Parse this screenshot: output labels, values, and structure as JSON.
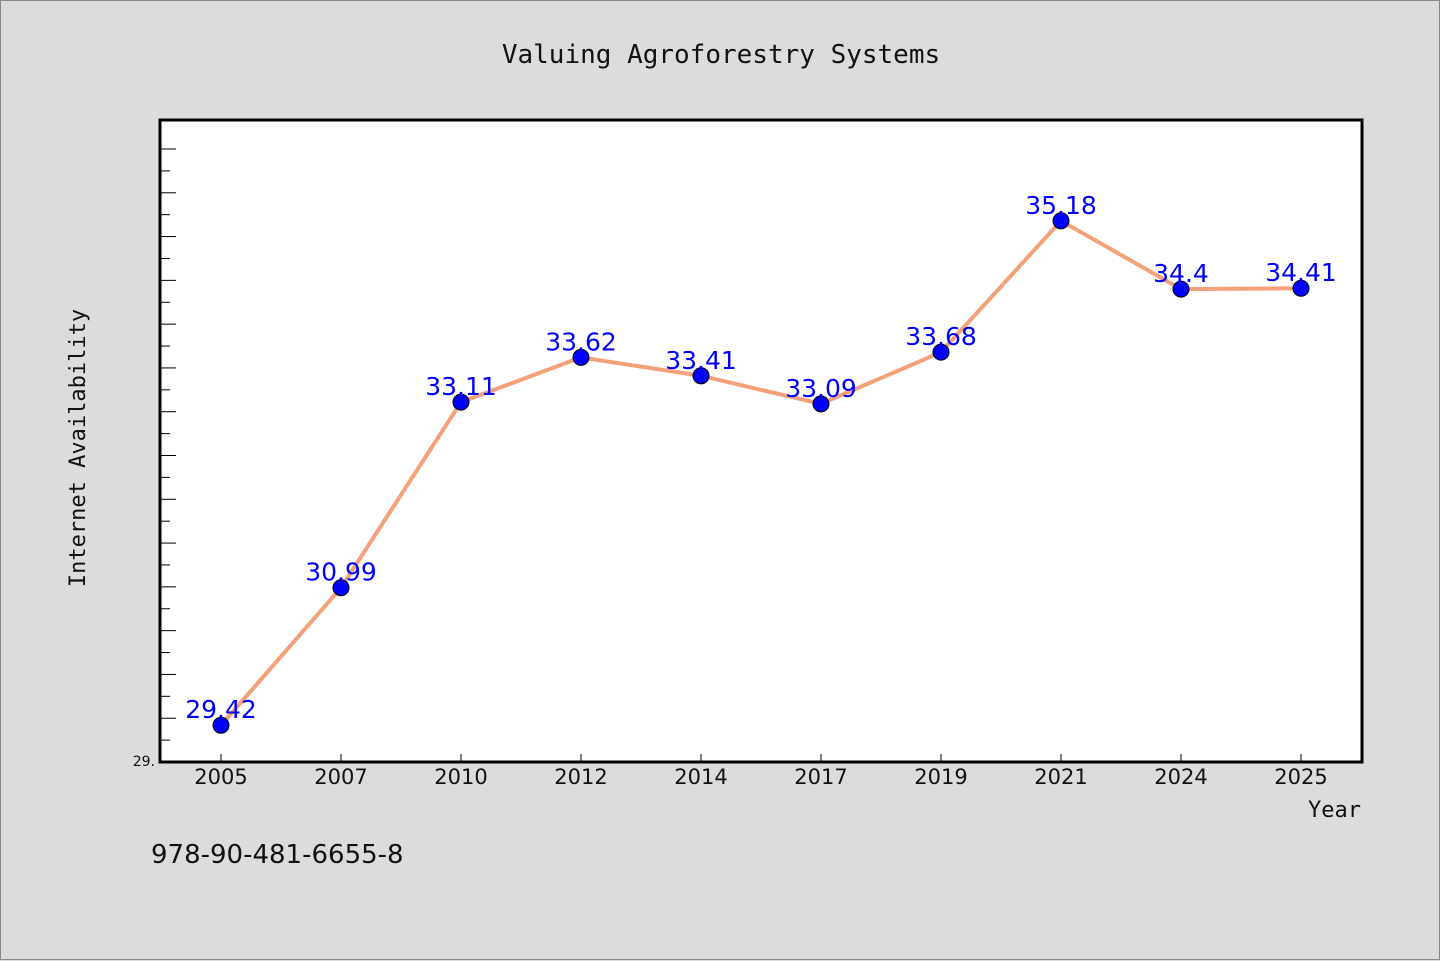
{
  "chart_data": {
    "type": "line",
    "title": "Valuing Agroforestry Systems",
    "xlabel": "Year",
    "ylabel": "Internet Availability",
    "categories": [
      "2005",
      "2007",
      "2010",
      "2012",
      "2014",
      "2017",
      "2019",
      "2021",
      "2024",
      "2025"
    ],
    "series": [
      {
        "values": [
          29.42,
          30.99,
          33.11,
          33.62,
          33.41,
          33.09,
          33.68,
          35.18,
          34.4,
          34.41
        ],
        "labels": [
          "29.42",
          "30.99",
          "33.11",
          "33.62",
          "33.41",
          "33.09",
          "33.68",
          "35.18",
          "34.4",
          "34.41"
        ]
      }
    ],
    "ylim": [
      29.0,
      36.0
    ],
    "y_tick_label": "29.",
    "grid": false,
    "legend": "none",
    "line_color": "#f4a07a",
    "marker_color": "#0000ff",
    "label_color": "#0000ff",
    "plot_background": "#ffffff",
    "page_background": "#dcdcdc"
  },
  "footer": {
    "isbn": "978-90-481-6655-8"
  }
}
